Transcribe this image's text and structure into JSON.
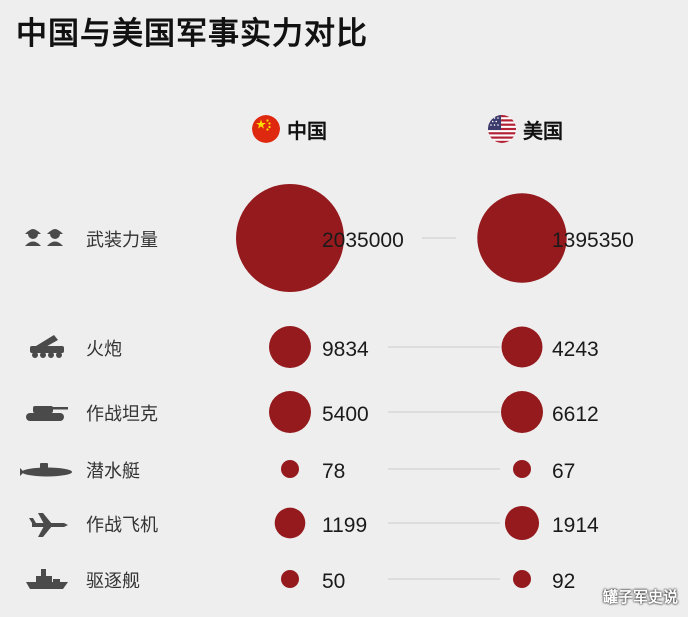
{
  "title": "中国与美国军事实力对比",
  "watermark": "罐子军史说",
  "colors": {
    "bubble": "#951a1e",
    "background": "#efeeee",
    "icon": "#4a4a4a",
    "connector": "#cccccc"
  },
  "legend": {
    "china": {
      "label": "中国",
      "icon": "china-flag-icon"
    },
    "usa": {
      "label": "美国",
      "icon": "usa-flag-icon"
    }
  },
  "chart_data": {
    "type": "bubble",
    "title": "中国与美国军事实力对比",
    "series_labels": [
      "中国",
      "美国"
    ],
    "categories": [
      {
        "label": "武装力量",
        "icon": "soldiers-icon",
        "china": 2035000,
        "usa": 1395350
      },
      {
        "label": "火炮",
        "icon": "rocket-launcher-icon",
        "china": 9834,
        "usa": 4243
      },
      {
        "label": "作战坦克",
        "icon": "tank-icon",
        "china": 5400,
        "usa": 6612
      },
      {
        "label": "潜水艇",
        "icon": "submarine-icon",
        "china": 78,
        "usa": 67
      },
      {
        "label": "作战飞机",
        "icon": "fighter-jet-icon",
        "china": 1199,
        "usa": 1914
      },
      {
        "label": "驱逐舰",
        "icon": "warship-icon",
        "china": 50,
        "usa": 92
      }
    ]
  }
}
